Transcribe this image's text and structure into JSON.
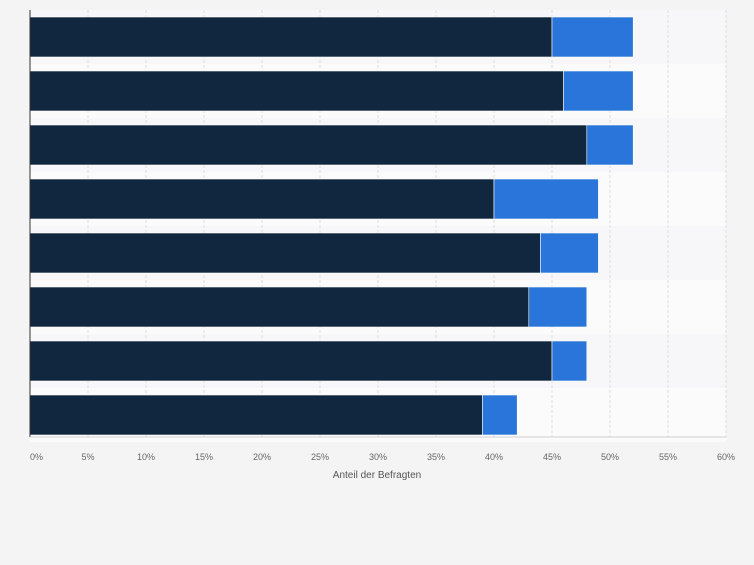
{
  "chart_data": {
    "type": "bar",
    "orientation": "horizontal",
    "stacked": true,
    "categories": [
      "",
      "",
      "",
      "",
      "",
      "",
      "",
      ""
    ],
    "series": [
      {
        "values": [
          45,
          46,
          48,
          40,
          44,
          43,
          45,
          39
        ],
        "color": "#11263f"
      },
      {
        "values": [
          7,
          6,
          4,
          9,
          5,
          5,
          3,
          3
        ],
        "color": "#2a75d9"
      }
    ],
    "xlabel": "Anteil der Befragten",
    "xlim": [
      0,
      60
    ],
    "xticks": [
      "0%",
      "5%",
      "10%",
      "15%",
      "20%",
      "25%",
      "30%",
      "35%",
      "40%",
      "45%",
      "50%",
      "55%",
      "60%"
    ],
    "grid": true,
    "legend": "none"
  }
}
